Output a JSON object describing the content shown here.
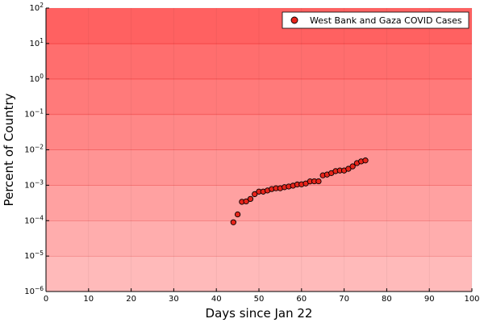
{
  "chart_data": {
    "type": "scatter",
    "xlabel": "Days since Jan 22",
    "ylabel": "Percent of Country",
    "xlim": [
      0,
      100
    ],
    "ylim_log10": [
      -6,
      2
    ],
    "y_scale": "log",
    "x_ticks": [
      "0",
      "10",
      "20",
      "30",
      "40",
      "50",
      "60",
      "70",
      "80",
      "90",
      "100"
    ],
    "y_tick_exponents": [
      "-6",
      "-5",
      "-4",
      "-3",
      "-2",
      "-1",
      "0",
      "1",
      "2"
    ],
    "y_tick_base": "10",
    "grid": true,
    "legend_position": "top-right",
    "background_bands": "red shading, darker toward top",
    "marker_color": "#e8241a",
    "marker_edge": "#000000",
    "series": [
      {
        "name": "West Bank and Gaza COVID Cases",
        "points": [
          [
            44,
            9e-05
          ],
          [
            45,
            0.00015
          ],
          [
            46,
            0.00034
          ],
          [
            47,
            0.00035
          ],
          [
            48,
            0.00041
          ],
          [
            49,
            0.00056
          ],
          [
            50,
            0.00066
          ],
          [
            51,
            0.00066
          ],
          [
            52,
            0.00071
          ],
          [
            53,
            0.00078
          ],
          [
            54,
            0.00082
          ],
          [
            55,
            0.00082
          ],
          [
            56,
            0.00088
          ],
          [
            57,
            0.00092
          ],
          [
            58,
            0.00097
          ],
          [
            59,
            0.00105
          ],
          [
            60,
            0.00106
          ],
          [
            61,
            0.00112
          ],
          [
            62,
            0.00128
          ],
          [
            63,
            0.00129
          ],
          [
            64,
            0.00129
          ],
          [
            65,
            0.0019
          ],
          [
            66,
            0.002
          ],
          [
            67,
            0.0022
          ],
          [
            68,
            0.0025
          ],
          [
            69,
            0.0026
          ],
          [
            70,
            0.0026
          ],
          [
            71,
            0.0029
          ],
          [
            72,
            0.0034
          ],
          [
            73,
            0.0042
          ],
          [
            74,
            0.0047
          ],
          [
            75,
            0.005
          ]
        ]
      }
    ]
  }
}
